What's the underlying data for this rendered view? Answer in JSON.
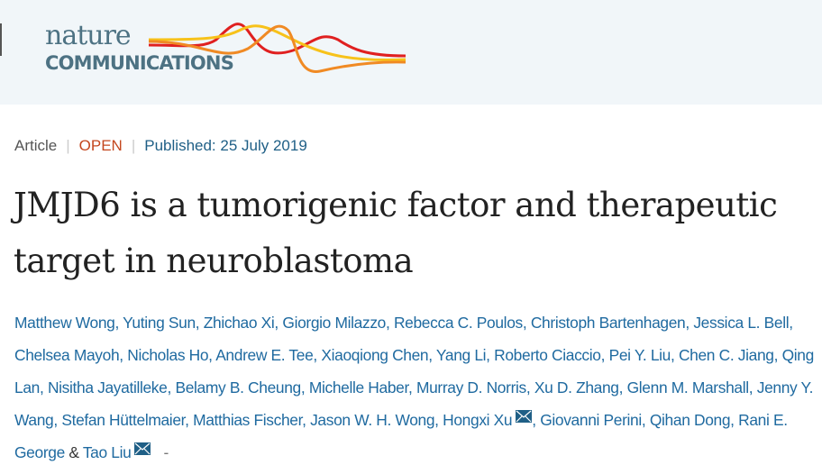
{
  "header": {
    "logo": {
      "line1": "nature",
      "line2": "COMMUNICATIONS"
    }
  },
  "meta": {
    "type": "Article",
    "access": "OPEN",
    "published": "Published: 25 July 2019"
  },
  "title": "JMJD6 is a tumorigenic factor and therapeutic target in neuroblastoma",
  "authors": [
    "Matthew Wong",
    "Yuting Sun",
    "Zhichao Xi",
    "Giorgio Milazzo",
    "Rebecca C. Poulos",
    "Christoph Bartenhagen",
    "Jessica L. Bell",
    "Chelsea Mayoh",
    "Nicholas Ho",
    "Andrew E. Tee",
    "Xiaoqiong Chen",
    "Yang Li",
    "Roberto Ciaccio",
    "Pei Y. Liu",
    "Chen C. Jiang",
    "Qing Lan",
    "Nisitha Jayatilleke",
    "Belamy B. Cheung",
    "Michelle Haber",
    "Murray D. Norris",
    "Xu D. Zhang",
    "Glenn M. Marshall",
    "Jenny Y. Wang",
    "Stefan Hüttelmaier",
    "Matthias Fischer",
    "Jason W. H. Wong",
    "Hongxi Xu",
    "Giovanni Perini",
    "Qihan Dong",
    "Rani E. George",
    "Tao Liu"
  ],
  "corresponding_authors": [
    "Hongxi Xu",
    "Tao Liu"
  ],
  "amp": "&",
  "trailing": "-",
  "icons": {
    "mail": "envelope-icon"
  },
  "colors": {
    "header_bg": "#f1f6f9",
    "link": "#1f6aa0",
    "open": "#c4471e",
    "logo_text": "#4d7283"
  }
}
